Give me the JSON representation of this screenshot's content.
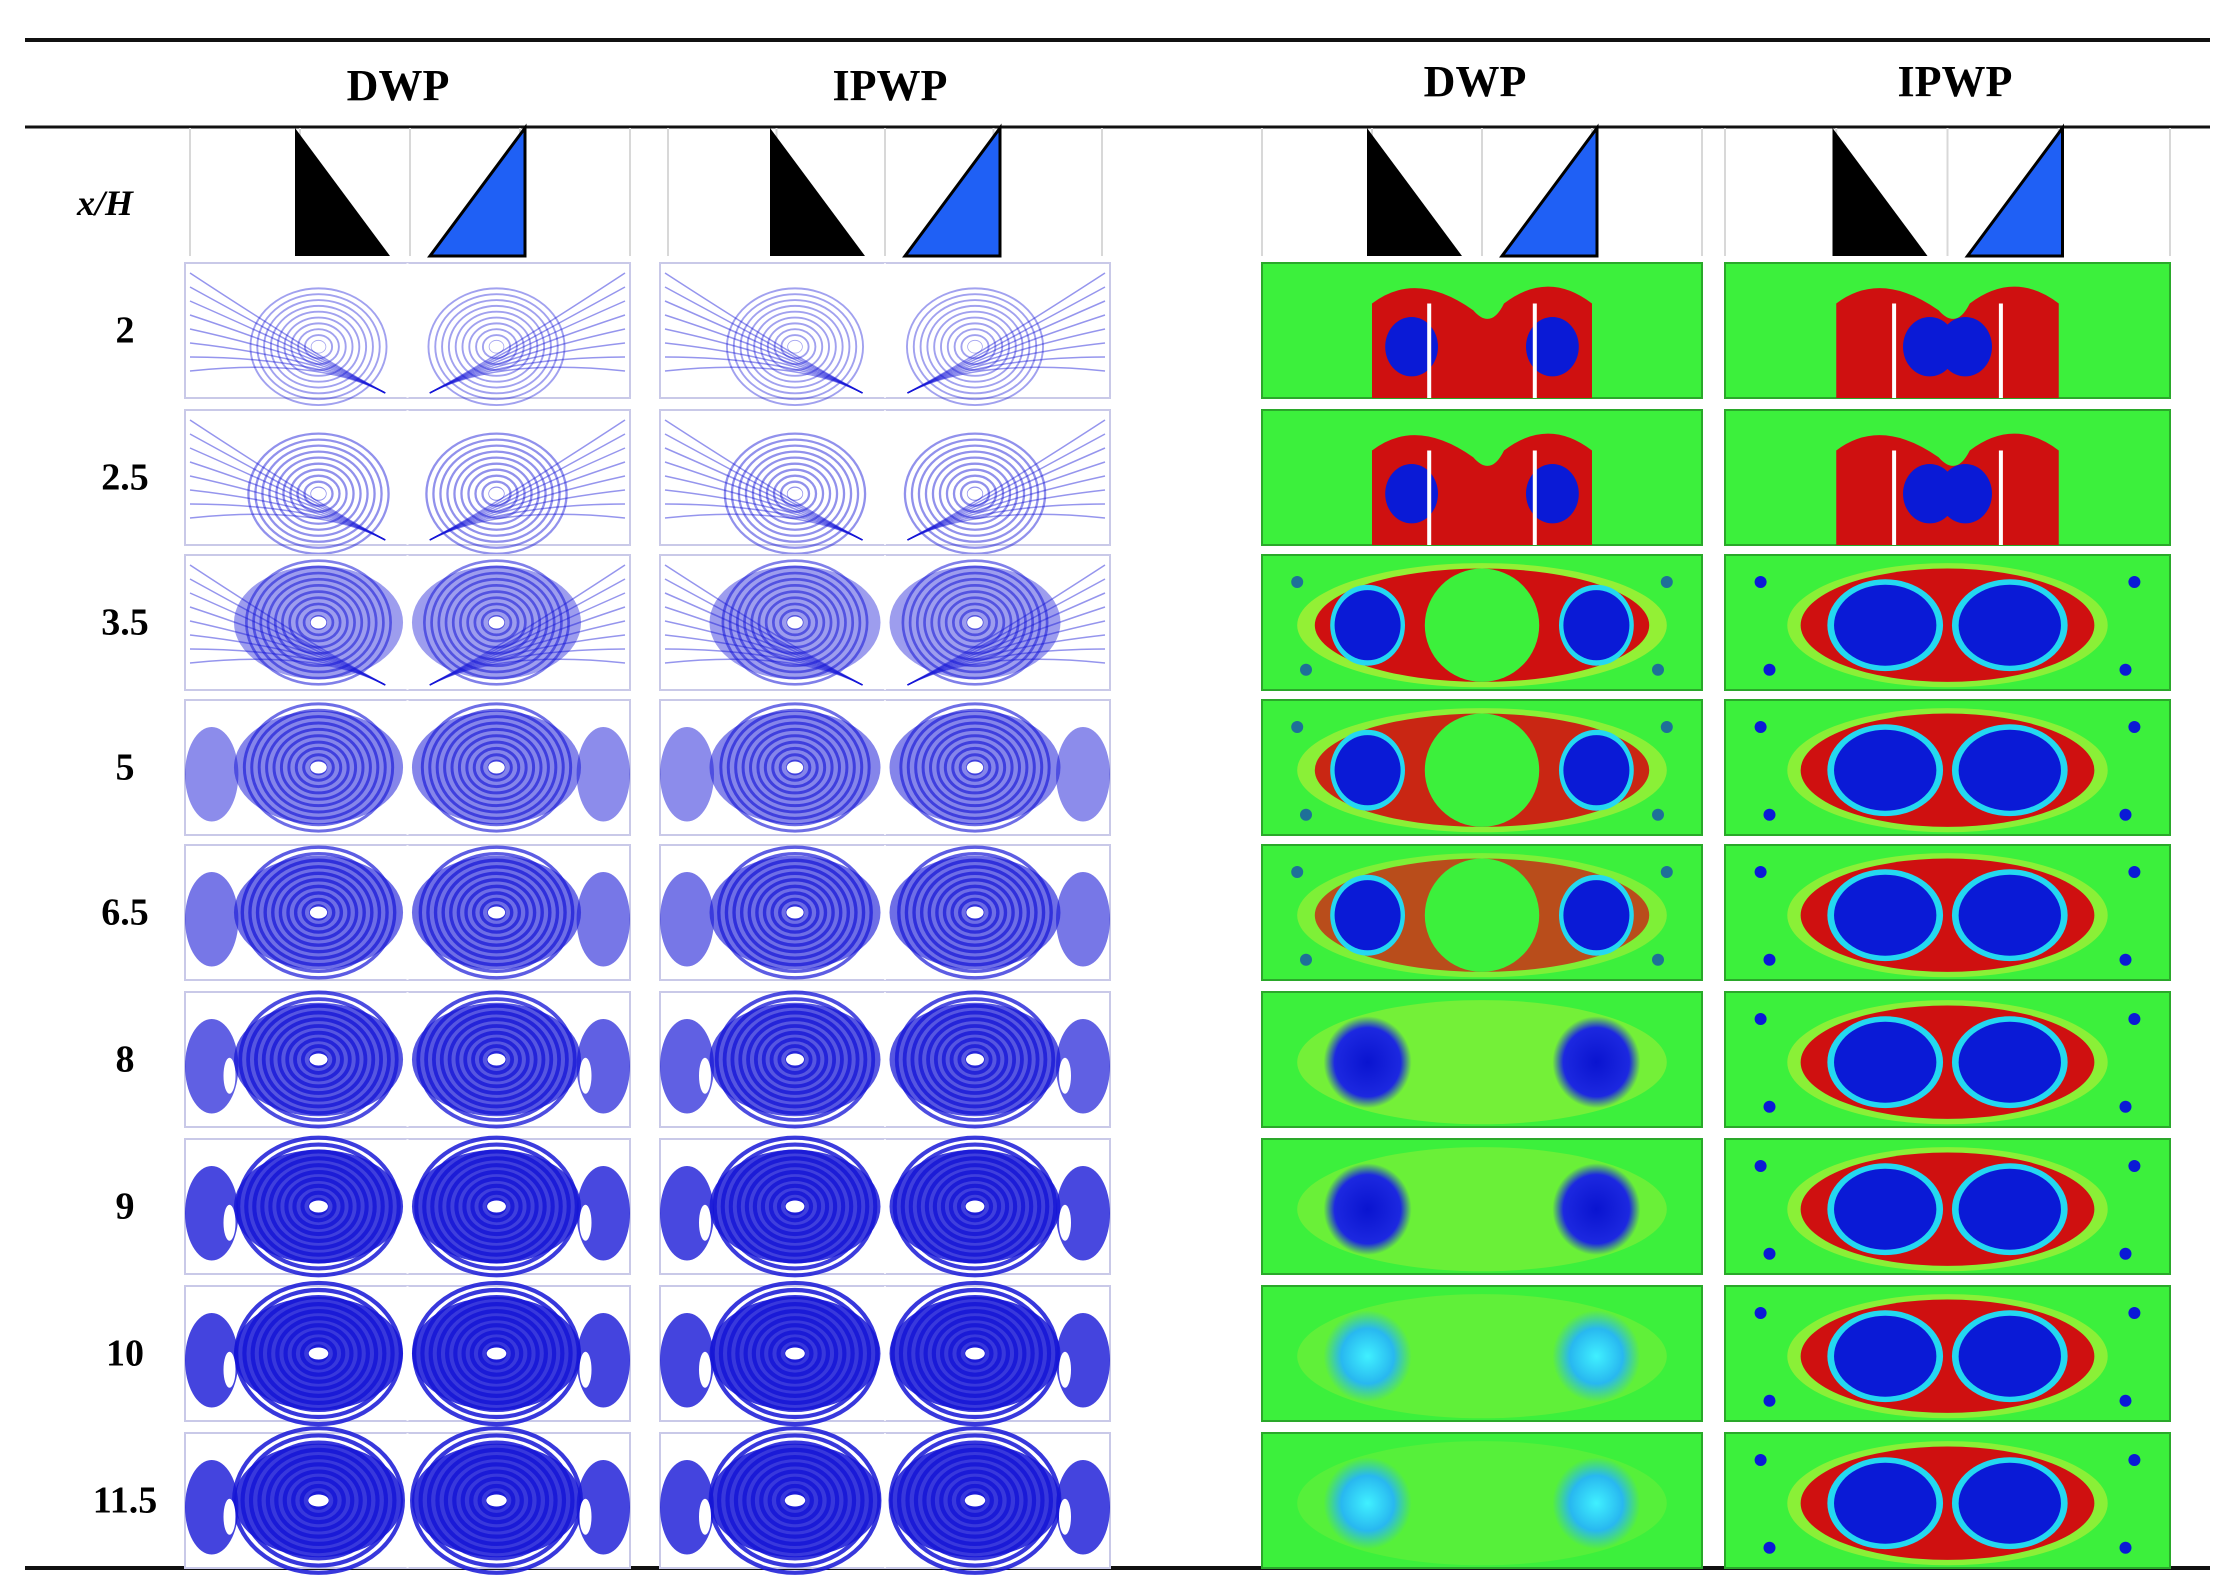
{
  "headers": {
    "col1": "DWP",
    "col2": "IPWP",
    "col3": "DWP",
    "col4": "IPWP"
  },
  "axis_label": "x/H",
  "rows": [
    "2",
    "2.5",
    "3.5",
    "5",
    "6.5",
    "8",
    "9",
    "10",
    "11.5"
  ],
  "colors": {
    "streamline_blue": "#1515d6",
    "contour_green": "#3cf03c",
    "contour_red": "#cf1010",
    "contour_blue": "#0a1ad6",
    "contour_yellow": "#e8f030",
    "contour_cyan": "#24d8f0",
    "wing_black": "#000000",
    "wing_blue": "#1f60f5"
  },
  "icons": [
    "black-delta-wing-icon",
    "blue-delta-wing-icon"
  ]
}
